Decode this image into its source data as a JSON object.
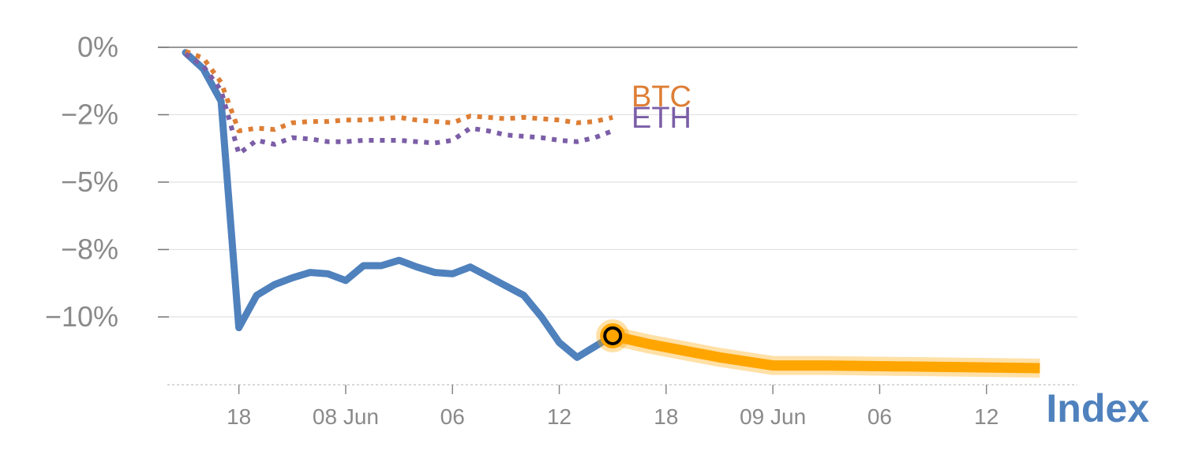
{
  "chart_data": {
    "type": "line",
    "title": "",
    "xlabel": "Index",
    "ylabel": "",
    "ylim": [
      -12.5,
      0
    ],
    "y_ticks": [
      {
        "value": 0,
        "label": "0%"
      },
      {
        "value": -2.5,
        "label": "−2%"
      },
      {
        "value": -5,
        "label": "−5%"
      },
      {
        "value": -7.5,
        "label": "−8%"
      },
      {
        "value": -10,
        "label": "−10%"
      }
    ],
    "x_ticks": [
      {
        "index": 3,
        "label": "18"
      },
      {
        "index": 9,
        "label": "08 Jun"
      },
      {
        "index": 15,
        "label": "06"
      },
      {
        "index": 21,
        "label": "12"
      },
      {
        "index": 27,
        "label": "18"
      },
      {
        "index": 33,
        "label": "09 Jun"
      },
      {
        "index": 39,
        "label": "06"
      },
      {
        "index": 45,
        "label": "12"
      }
    ],
    "x_range": [
      -1,
      49.7
    ],
    "series": [
      {
        "name": "Index",
        "color": "#4f81bd",
        "style": "solid",
        "x": [
          0,
          1,
          2,
          3,
          4,
          5,
          6,
          7,
          8,
          9,
          10,
          11,
          12,
          13,
          14,
          15,
          16,
          17,
          18,
          19,
          20,
          21,
          22,
          23,
          24
        ],
        "values": [
          -0.2,
          -0.8,
          -2.0,
          -10.4,
          -9.2,
          -8.8,
          -8.55,
          -8.35,
          -8.4,
          -8.65,
          -8.1,
          -8.1,
          -7.9,
          -8.15,
          -8.35,
          -8.4,
          -8.15,
          -8.5,
          -8.85,
          -9.2,
          -10.0,
          -10.95,
          -11.5,
          -11.1,
          -10.7
        ]
      },
      {
        "name": "BTC",
        "color": "#dd7e35",
        "style": "dotted",
        "x": [
          0,
          1,
          2,
          3,
          4,
          5,
          6,
          7,
          8,
          9,
          10,
          11,
          12,
          13,
          14,
          15,
          16,
          17,
          18,
          19,
          20,
          21,
          22,
          23,
          24
        ],
        "values": [
          -0.15,
          -0.4,
          -1.3,
          -3.1,
          -3.0,
          -3.05,
          -2.8,
          -2.75,
          -2.75,
          -2.7,
          -2.7,
          -2.65,
          -2.6,
          -2.7,
          -2.75,
          -2.8,
          -2.55,
          -2.6,
          -2.65,
          -2.6,
          -2.65,
          -2.7,
          -2.8,
          -2.75,
          -2.6
        ]
      },
      {
        "name": "ETH",
        "color": "#7b5ea7",
        "style": "dotted",
        "x": [
          0,
          1,
          2,
          3,
          4,
          5,
          6,
          7,
          8,
          9,
          10,
          11,
          12,
          13,
          14,
          15,
          16,
          17,
          18,
          19,
          20,
          21,
          22,
          23,
          24
        ],
        "values": [
          -0.25,
          -0.7,
          -1.6,
          -3.95,
          -3.45,
          -3.6,
          -3.35,
          -3.4,
          -3.5,
          -3.5,
          -3.45,
          -3.45,
          -3.45,
          -3.5,
          -3.55,
          -3.45,
          -3.0,
          -3.1,
          -3.25,
          -3.3,
          -3.35,
          -3.45,
          -3.5,
          -3.35,
          -3.1
        ]
      },
      {
        "name": "Index (highlighted)",
        "color": "#ffa500",
        "style": "highlight",
        "x": [
          24,
          26,
          30,
          33,
          36,
          42,
          48
        ],
        "values": [
          -10.7,
          -11.0,
          -11.5,
          -11.8,
          -11.8,
          -11.85,
          -11.9
        ]
      }
    ],
    "labels": [
      {
        "text": "BTC",
        "color": "#dd7e35"
      },
      {
        "text": "ETH",
        "color": "#7b5ea7"
      }
    ],
    "marker": {
      "series": "Index",
      "x": 24,
      "value": -10.7,
      "fill": "#ffa500",
      "inner": "#000000"
    }
  }
}
